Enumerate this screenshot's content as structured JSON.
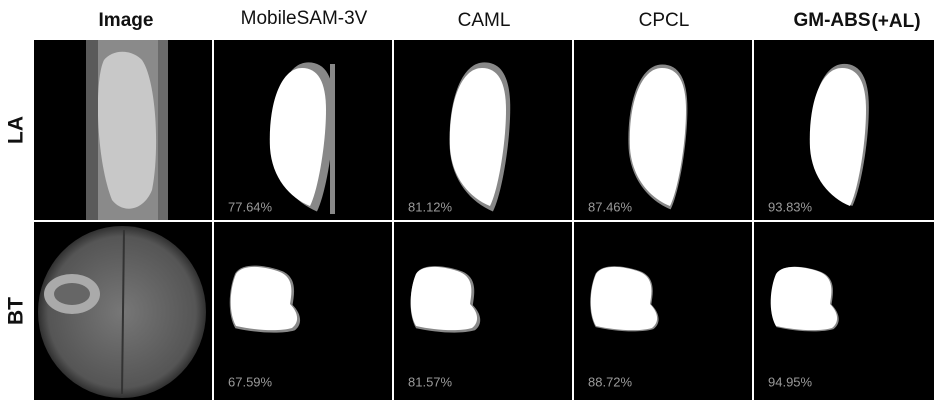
{
  "columns": [
    {
      "title": "Image"
    },
    {
      "title": "MobileSAM-3V"
    },
    {
      "title": "CAML"
    },
    {
      "title": "CPCL"
    },
    {
      "title": "GM-ABS",
      "suffix": "(+AL)"
    }
  ],
  "rows": [
    {
      "label": "LA",
      "scores": [
        "77.64%",
        "81.12%",
        "87.46%",
        "93.83%"
      ]
    },
    {
      "label": "BT",
      "scores": [
        "67.59%",
        "81.57%",
        "88.72%",
        "94.95%"
      ]
    }
  ]
}
